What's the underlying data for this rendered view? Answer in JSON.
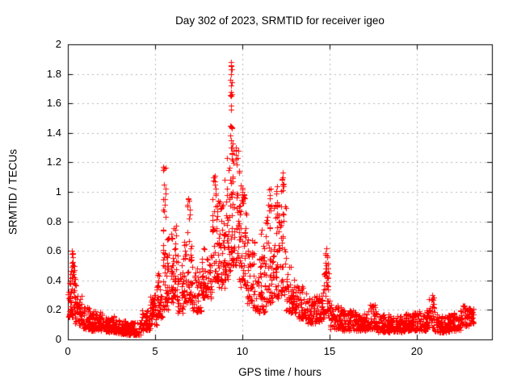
{
  "chart_data": {
    "type": "scatter",
    "title": "Day 302 of 2023, SRMTID for receiver igeo",
    "xlabel": "GPS time / hours",
    "ylabel": "SRMTID / TECUs",
    "xlim": [
      0,
      24.3
    ],
    "ylim": [
      0,
      2
    ],
    "xticks": [
      0,
      5,
      10,
      15,
      20
    ],
    "yticks": [
      0,
      0.2,
      0.4,
      0.6,
      0.8,
      1,
      1.2,
      1.4,
      1.6,
      1.8,
      2
    ],
    "grid": true,
    "legend_position": "none",
    "marker": "plus",
    "marker_color": "#ff0000",
    "border_color": "#000000",
    "grid_color": "#b5b5b5",
    "background": "#ffffff",
    "seed": 42,
    "band_profile": [
      [
        0.0,
        0.15,
        0.15,
        0.32,
        14
      ],
      [
        0.1,
        0.45,
        0.15,
        0.45,
        40
      ],
      [
        0.15,
        0.4,
        0.42,
        0.6,
        12
      ],
      [
        0.4,
        0.8,
        0.1,
        0.3,
        45
      ],
      [
        0.8,
        1.3,
        0.07,
        0.22,
        55
      ],
      [
        1.3,
        2.0,
        0.06,
        0.19,
        80
      ],
      [
        2.0,
        2.7,
        0.05,
        0.16,
        75
      ],
      [
        2.7,
        3.3,
        0.04,
        0.13,
        65
      ],
      [
        3.3,
        4.2,
        0.03,
        0.12,
        90
      ],
      [
        4.2,
        4.7,
        0.06,
        0.2,
        50
      ],
      [
        4.7,
        5.1,
        0.1,
        0.3,
        45
      ],
      [
        5.1,
        5.4,
        0.15,
        0.45,
        35
      ],
      [
        5.4,
        5.75,
        0.2,
        0.78,
        45
      ],
      [
        5.45,
        5.6,
        0.8,
        1.18,
        9
      ],
      [
        5.75,
        6.3,
        0.25,
        0.8,
        60
      ],
      [
        6.3,
        6.65,
        0.18,
        0.55,
        35
      ],
      [
        6.65,
        7.1,
        0.25,
        0.82,
        45
      ],
      [
        6.8,
        7.0,
        0.82,
        0.96,
        6
      ],
      [
        7.1,
        7.65,
        0.18,
        0.5,
        50
      ],
      [
        7.65,
        8.25,
        0.28,
        0.62,
        55
      ],
      [
        8.25,
        8.6,
        0.4,
        1.0,
        40
      ],
      [
        8.3,
        8.5,
        1.0,
        1.12,
        5
      ],
      [
        8.6,
        9.0,
        0.35,
        0.95,
        50
      ],
      [
        9.0,
        9.35,
        0.4,
        1.25,
        45
      ],
      [
        9.3,
        9.45,
        1.25,
        1.6,
        8
      ],
      [
        9.3,
        9.42,
        1.65,
        1.88,
        8
      ],
      [
        9.35,
        9.8,
        0.5,
        1.3,
        55
      ],
      [
        9.8,
        10.25,
        0.35,
        1.05,
        60
      ],
      [
        10.25,
        10.7,
        0.22,
        0.7,
        45
      ],
      [
        10.7,
        11.35,
        0.18,
        0.55,
        55
      ],
      [
        11.0,
        11.3,
        0.55,
        0.75,
        8
      ],
      [
        11.35,
        11.75,
        0.25,
        0.85,
        40
      ],
      [
        11.45,
        11.7,
        0.85,
        1.02,
        7
      ],
      [
        11.75,
        12.15,
        0.28,
        0.9,
        40
      ],
      [
        11.9,
        12.1,
        0.9,
        1.06,
        6
      ],
      [
        12.15,
        12.5,
        0.3,
        1.0,
        35
      ],
      [
        12.2,
        12.4,
        1.0,
        1.14,
        6
      ],
      [
        12.5,
        13.05,
        0.18,
        0.5,
        50
      ],
      [
        13.05,
        13.7,
        0.14,
        0.38,
        55
      ],
      [
        13.7,
        14.3,
        0.11,
        0.3,
        55
      ],
      [
        14.3,
        14.65,
        0.12,
        0.35,
        35
      ],
      [
        14.65,
        15.0,
        0.14,
        0.45,
        35
      ],
      [
        14.72,
        14.95,
        0.45,
        0.63,
        8
      ],
      [
        15.0,
        15.7,
        0.07,
        0.24,
        70
      ],
      [
        15.7,
        16.5,
        0.06,
        0.2,
        80
      ],
      [
        16.5,
        17.2,
        0.06,
        0.18,
        70
      ],
      [
        17.2,
        17.7,
        0.07,
        0.24,
        50
      ],
      [
        17.7,
        18.5,
        0.05,
        0.17,
        80
      ],
      [
        18.5,
        19.3,
        0.05,
        0.16,
        80
      ],
      [
        19.3,
        20.1,
        0.06,
        0.18,
        80
      ],
      [
        20.1,
        20.7,
        0.06,
        0.2,
        60
      ],
      [
        20.7,
        21.0,
        0.08,
        0.3,
        30
      ],
      [
        21.0,
        21.9,
        0.05,
        0.17,
        85
      ],
      [
        21.9,
        22.5,
        0.06,
        0.18,
        60
      ],
      [
        22.5,
        23.0,
        0.09,
        0.23,
        50
      ],
      [
        23.0,
        23.25,
        0.11,
        0.22,
        25
      ]
    ],
    "outlier_points": [
      [
        0.22,
        0.52
      ],
      [
        0.28,
        0.56
      ],
      [
        0.3,
        0.58
      ],
      [
        0.24,
        0.6
      ],
      [
        0.33,
        0.5
      ],
      [
        0.36,
        0.47
      ],
      [
        0.05,
        0.32
      ],
      [
        0.1,
        0.38
      ],
      [
        5.48,
        1.17
      ],
      [
        5.52,
        1.16
      ],
      [
        5.5,
        1.05
      ],
      [
        5.55,
        0.95
      ],
      [
        5.45,
        0.88
      ],
      [
        6.9,
        0.95
      ],
      [
        6.85,
        0.9
      ],
      [
        8.35,
        1.1
      ],
      [
        8.42,
        1.05
      ],
      [
        9.33,
        1.88
      ],
      [
        9.36,
        1.86
      ],
      [
        9.34,
        1.85
      ],
      [
        9.38,
        1.83
      ],
      [
        9.33,
        1.83
      ],
      [
        9.35,
        1.72
      ],
      [
        9.37,
        1.68
      ],
      [
        9.33,
        1.56
      ],
      [
        9.36,
        1.44
      ],
      [
        9.32,
        1.38
      ],
      [
        9.35,
        1.35
      ],
      [
        9.34,
        1.3
      ],
      [
        9.38,
        1.26
      ],
      [
        9.62,
        1.3
      ],
      [
        9.65,
        1.25
      ],
      [
        12.3,
        1.13
      ],
      [
        12.28,
        1.08
      ],
      [
        12.33,
        1.05
      ],
      [
        11.62,
        1.02
      ],
      [
        11.55,
        0.98
      ],
      [
        12.0,
        1.04
      ],
      [
        11.95,
        0.99
      ],
      [
        14.8,
        0.62
      ],
      [
        14.85,
        0.57
      ],
      [
        14.78,
        0.52
      ],
      [
        14.9,
        0.48
      ],
      [
        20.88,
        0.3
      ],
      [
        20.9,
        0.27
      ]
    ]
  }
}
